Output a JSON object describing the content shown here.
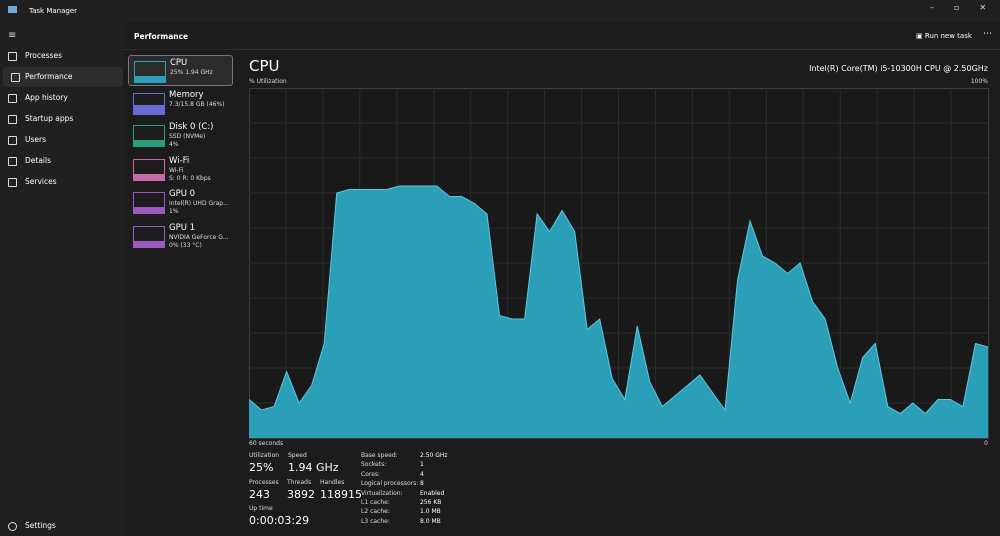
{
  "window": {
    "title": "Task Manager"
  },
  "nav": {
    "items": [
      "Processes",
      "Performance",
      "App history",
      "Startup apps",
      "Users",
      "Details",
      "Services"
    ],
    "settings": "Settings"
  },
  "header": {
    "title": "Performance",
    "run_new_task": "Run new task"
  },
  "devices": [
    {
      "name": "CPU",
      "details": [
        "25% 1.94 GHz"
      ]
    },
    {
      "name": "Memory",
      "details": [
        "7.3/15.8 GB (46%)"
      ]
    },
    {
      "name": "Disk 0 (C:)",
      "details": [
        "SSD (NVMe)",
        "4%"
      ]
    },
    {
      "name": "Wi-Fi",
      "details": [
        "Wi-Fi",
        "S: 0 R: 0 Kbps"
      ]
    },
    {
      "name": "GPU 0",
      "details": [
        "Intel(R) UHD Grap...",
        "1%"
      ]
    },
    {
      "name": "GPU 1",
      "details": [
        "NVIDIA GeForce G...",
        "0% (33 °C)"
      ]
    }
  ],
  "chart_data": {
    "type": "area",
    "title": "CPU",
    "subtitle": "Intel(R) Core(TM) i5-10300H CPU @ 2.50GHz",
    "y_label": "% Utilization",
    "y_max_label": "100%",
    "x_left_label": "60 seconds",
    "x_right_label": "0",
    "ylim": [
      0,
      100
    ],
    "color": "#2b9fb7",
    "values": [
      11,
      8,
      9,
      19,
      10,
      15,
      27,
      70,
      71,
      71,
      71,
      71,
      72,
      72,
      72,
      72,
      69,
      69,
      67,
      64,
      35,
      34,
      34,
      64,
      59,
      65,
      59,
      31,
      34,
      17,
      11,
      32,
      16,
      9,
      12,
      15,
      18,
      13,
      8,
      45,
      62,
      52,
      50,
      47,
      50,
      39,
      34,
      20,
      10,
      23,
      27,
      9,
      7,
      10,
      7,
      11,
      11,
      9,
      27,
      26
    ]
  },
  "stats": {
    "utilization": {
      "label": "Utilization",
      "value": "25%"
    },
    "speed": {
      "label": "Speed",
      "value": "1.94 GHz"
    },
    "processes": {
      "label": "Processes",
      "value": "243"
    },
    "threads": {
      "label": "Threads",
      "value": "3892"
    },
    "handles": {
      "label": "Handles",
      "value": "118915"
    },
    "uptime": {
      "label": "Up time",
      "value": "0:00:03:29"
    }
  },
  "specs": [
    [
      "Base speed:",
      "2.50 GHz"
    ],
    [
      "Sockets:",
      "1"
    ],
    [
      "Cores:",
      "4"
    ],
    [
      "Logical processors:",
      "8"
    ],
    [
      "Virtualization:",
      "Enabled"
    ],
    [
      "L1 cache:",
      "256 KB"
    ],
    [
      "L2 cache:",
      "1.0 MB"
    ],
    [
      "L3 cache:",
      "8.0 MB"
    ]
  ]
}
